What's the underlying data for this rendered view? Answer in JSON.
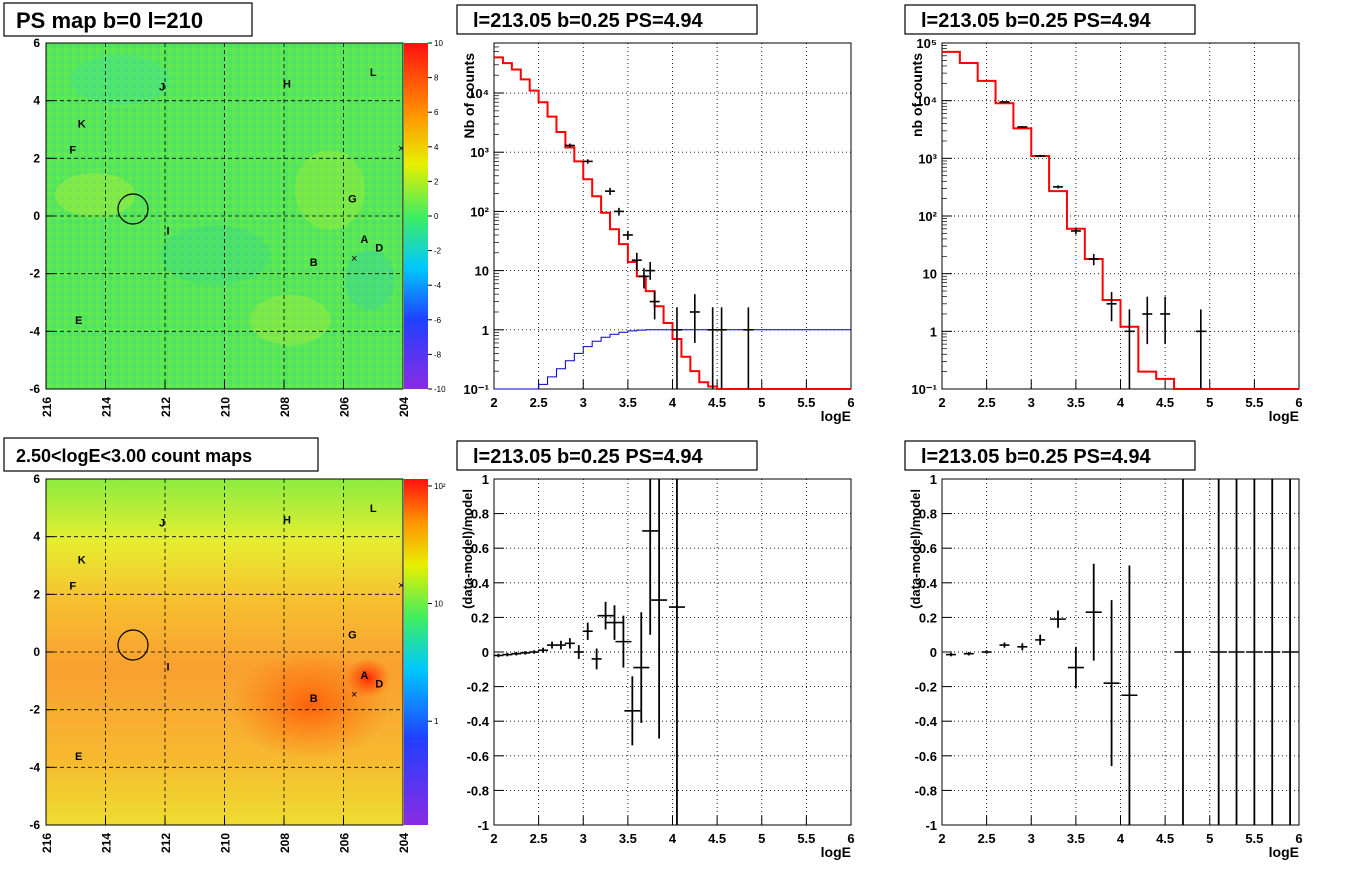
{
  "panels": {
    "map_top": {
      "title": "PS map b=0 l=210",
      "xticks": [
        "216",
        "214",
        "212",
        "210",
        "208",
        "206",
        "204"
      ],
      "yticks": [
        "6",
        "4",
        "2",
        "0",
        "-2",
        "-4",
        "-6"
      ],
      "cticks": [
        "10",
        "8",
        "6",
        "4",
        "2",
        "0",
        "-2",
        "-4",
        "-6",
        "-8",
        "-10"
      ],
      "labels": [
        "L",
        "J",
        "H",
        "K",
        "F",
        "G",
        "I",
        "A",
        "D",
        "B",
        "E"
      ]
    },
    "map_bottom": {
      "title": "2.50<logE<3.00 count maps",
      "xticks": [
        "216",
        "214",
        "212",
        "210",
        "208",
        "206",
        "204"
      ],
      "yticks": [
        "6",
        "4",
        "2",
        "0",
        "-2",
        "-4",
        "-6"
      ],
      "cticks": [
        "10²",
        "10",
        "1"
      ],
      "labels": [
        "L",
        "J",
        "H",
        "K",
        "F",
        "G",
        "I",
        "A",
        "D",
        "B",
        "E"
      ]
    },
    "spec1_title": "l=213.05 b=0.25 PS=4.94",
    "spec2_title": "l=213.05 b=0.25 PS=4.94",
    "res1_title": "l=213.05 b=0.25 PS=4.94",
    "res2_title": "l=213.05 b=0.25 PS=4.94"
  },
  "colors": {
    "model": "#ff0000",
    "ps_model": "#0000cc",
    "data": "#000000",
    "map_bg": "#44ee44"
  },
  "chart_data": [
    {
      "type": "heatmap",
      "title": "PS map b=0 l=210",
      "x_range": [
        216,
        204
      ],
      "y_range": [
        -6,
        6
      ],
      "z_range": [
        -10,
        10
      ],
      "z_ticks": [
        10,
        8,
        6,
        4,
        2,
        0,
        -2,
        -4,
        -6,
        -8,
        -10
      ],
      "sources": [
        {
          "label": "L",
          "l": 205.0,
          "b": 5.0
        },
        {
          "label": "J",
          "l": 212.1,
          "b": 4.5
        },
        {
          "label": "H",
          "l": 207.9,
          "b": 4.6
        },
        {
          "label": "K",
          "l": 214.8,
          "b": 3.2
        },
        {
          "label": "F",
          "l": 215.1,
          "b": 2.3
        },
        {
          "label": "G",
          "l": 205.7,
          "b": 0.6
        },
        {
          "label": "I",
          "l": 211.9,
          "b": -0.5
        },
        {
          "label": "A",
          "l": 205.3,
          "b": -0.8
        },
        {
          "label": "D",
          "l": 204.8,
          "b": -1.1
        },
        {
          "label": "B",
          "l": 207.0,
          "b": -1.6
        },
        {
          "label": "E",
          "l": 214.9,
          "b": -3.6
        }
      ]
    },
    {
      "type": "heatmap",
      "title": "2.50<logE<3.00 count maps",
      "x_range": [
        216,
        204
      ],
      "y_range": [
        -6,
        6
      ],
      "z_scale": "log",
      "z_ticks": [
        "10²",
        "10",
        "1"
      ]
    },
    {
      "type": "line",
      "title": "l=213.05 b=0.25 PS=4.94",
      "xlabel": "logE",
      "ylabel": "Nb of counts",
      "xlim": [
        2,
        6
      ],
      "ylim": [
        0.1,
        70000
      ],
      "yscale": "log",
      "xticks": [
        "2",
        "2.5",
        "3",
        "3.5",
        "4",
        "4.5",
        "5",
        "5.5",
        "6"
      ],
      "yticks": [
        "10⁻¹",
        "1",
        "10",
        "10²",
        "10³",
        "10⁴"
      ],
      "grid": true,
      "series": [
        {
          "role": "model",
          "x": [
            2,
            2.1,
            2.2,
            2.3,
            2.4,
            2.5,
            2.6,
            2.7,
            2.8,
            2.9,
            3.0,
            3.1,
            3.2,
            3.3,
            3.4,
            3.5,
            3.6,
            3.7,
            3.8,
            3.9,
            4.0,
            4.1,
            4.2,
            4.3,
            4.4,
            4.5,
            4.6,
            6.0
          ],
          "y": [
            40000,
            32000,
            25000,
            17000,
            11000,
            7000,
            4000,
            2200,
            1200,
            700,
            350,
            180,
            95,
            50,
            28,
            14,
            8,
            4.5,
            2.5,
            1.3,
            0.7,
            0.35,
            0.2,
            0.13,
            0.11,
            0.1,
            0.1,
            0.1
          ]
        },
        {
          "role": "ps_model",
          "x": [
            2,
            2.4,
            2.5,
            2.6,
            2.7,
            2.8,
            2.9,
            3.0,
            3.1,
            3.2,
            3.3,
            3.4,
            3.5,
            3.6,
            3.7,
            3.8,
            6.0
          ],
          "y": [
            0.1,
            0.1,
            0.12,
            0.16,
            0.22,
            0.3,
            0.4,
            0.52,
            0.64,
            0.75,
            0.84,
            0.91,
            0.96,
            0.99,
            1,
            1,
            1
          ]
        },
        {
          "role": "data",
          "points": [
            {
              "x": 2.85,
              "y": 1300,
              "lo": 1200,
              "hi": 1400
            },
            {
              "x": 3.05,
              "y": 700,
              "lo": 640,
              "hi": 760
            },
            {
              "x": 3.3,
              "y": 220,
              "lo": 190,
              "hi": 250
            },
            {
              "x": 3.4,
              "y": 100,
              "lo": 85,
              "hi": 115
            },
            {
              "x": 3.5,
              "y": 40,
              "lo": 33,
              "hi": 47
            },
            {
              "x": 3.6,
              "y": 15,
              "lo": 10,
              "hi": 20
            },
            {
              "x": 3.68,
              "y": 8,
              "lo": 5,
              "hi": 11
            },
            {
              "x": 3.75,
              "y": 10,
              "lo": 7,
              "hi": 14
            },
            {
              "x": 3.8,
              "y": 3,
              "lo": 1.5,
              "hi": 4.5
            },
            {
              "x": 4.05,
              "y": 1,
              "lo": 0.1,
              "hi": 2.4
            },
            {
              "x": 4.25,
              "y": 2,
              "lo": 0.6,
              "hi": 4
            },
            {
              "x": 4.45,
              "y": 1,
              "lo": 0.1,
              "hi": 2.4
            },
            {
              "x": 4.55,
              "y": 1,
              "lo": 0.1,
              "hi": 2.4
            },
            {
              "x": 4.85,
              "y": 1,
              "lo": 0.1,
              "hi": 2.4
            }
          ]
        }
      ]
    },
    {
      "type": "line",
      "title": "l=213.05 b=0.25 PS=4.94",
      "xlabel": "logE",
      "ylabel": "nb of counts",
      "xlim": [
        2,
        6
      ],
      "ylim": [
        0.1,
        100000
      ],
      "yscale": "log",
      "xticks": [
        "2",
        "2.5",
        "3",
        "3.5",
        "4",
        "4.5",
        "5",
        "5.5",
        "6"
      ],
      "yticks": [
        "10⁻¹",
        "1",
        "10",
        "10²",
        "10³",
        "10⁴",
        "10⁵"
      ],
      "grid": true,
      "series": [
        {
          "role": "model",
          "x": [
            2,
            2.2,
            2.4,
            2.6,
            2.8,
            3.0,
            3.2,
            3.4,
            3.6,
            3.8,
            4.0,
            4.2,
            4.4,
            4.6,
            6.0
          ],
          "y": [
            70000,
            45000,
            22000,
            9000,
            3300,
            1100,
            270,
            60,
            18,
            3.5,
            1.2,
            0.2,
            0.15,
            0.1,
            0.1
          ]
        },
        {
          "role": "data",
          "points": [
            {
              "x": 2.7,
              "y": 9500,
              "lo": 9300,
              "hi": 9700
            },
            {
              "x": 2.9,
              "y": 3500,
              "lo": 3400,
              "hi": 3600
            },
            {
              "x": 3.1,
              "y": 1100,
              "lo": 1050,
              "hi": 1150
            },
            {
              "x": 3.3,
              "y": 320,
              "lo": 300,
              "hi": 340
            },
            {
              "x": 3.5,
              "y": 55,
              "lo": 48,
              "hi": 62
            },
            {
              "x": 3.7,
              "y": 18,
              "lo": 14,
              "hi": 22
            },
            {
              "x": 3.9,
              "y": 3,
              "lo": 1.5,
              "hi": 4.8
            },
            {
              "x": 4.1,
              "y": 1,
              "lo": 0.1,
              "hi": 2.4
            },
            {
              "x": 4.3,
              "y": 2,
              "lo": 0.6,
              "hi": 4
            },
            {
              "x": 4.5,
              "y": 2,
              "lo": 0.6,
              "hi": 4
            },
            {
              "x": 4.9,
              "y": 1,
              "lo": 0.1,
              "hi": 2.4
            }
          ]
        }
      ]
    },
    {
      "type": "scatter",
      "title": "l=213.05 b=0.25 PS=4.94",
      "xlabel": "logE",
      "ylabel": "(data-model)/model",
      "xlim": [
        2,
        6
      ],
      "ylim": [
        -1,
        1
      ],
      "xticks": [
        "2",
        "2.5",
        "3",
        "3.5",
        "4",
        "4.5",
        "5",
        "5.5",
        "6"
      ],
      "yticks": [
        "-1",
        "-0.8",
        "-0.6",
        "-0.4",
        "-0.2",
        "0",
        "0.2",
        "0.4",
        "0.6",
        "0.8",
        "1"
      ],
      "grid": true,
      "points": [
        {
          "x": 2.05,
          "y": -0.02,
          "e": 0.01
        },
        {
          "x": 2.15,
          "y": -0.015,
          "e": 0.01
        },
        {
          "x": 2.25,
          "y": -0.01,
          "e": 0.01
        },
        {
          "x": 2.35,
          "y": -0.005,
          "e": 0.01
        },
        {
          "x": 2.45,
          "y": 0.0,
          "e": 0.01
        },
        {
          "x": 2.55,
          "y": 0.01,
          "e": 0.015
        },
        {
          "x": 2.65,
          "y": 0.04,
          "e": 0.02
        },
        {
          "x": 2.75,
          "y": 0.04,
          "e": 0.025
        },
        {
          "x": 2.85,
          "y": 0.05,
          "e": 0.03
        },
        {
          "x": 2.95,
          "y": 0.0,
          "e": 0.04
        },
        {
          "x": 3.05,
          "y": 0.12,
          "e": 0.05
        },
        {
          "x": 3.15,
          "y": -0.04,
          "e": 0.06
        },
        {
          "x": 3.25,
          "y": 0.21,
          "e": 0.08
        },
        {
          "x": 3.35,
          "y": 0.17,
          "e": 0.1
        },
        {
          "x": 3.45,
          "y": 0.06,
          "e": 0.15
        },
        {
          "x": 3.55,
          "y": -0.34,
          "e": 0.2
        },
        {
          "x": 3.65,
          "y": -0.09,
          "e": 0.32
        },
        {
          "x": 3.75,
          "y": 0.7,
          "e": 0.6
        },
        {
          "x": 3.85,
          "y": 0.3,
          "e": 0.8
        },
        {
          "x": 4.05,
          "y": 0.26,
          "e": 1.5
        }
      ]
    },
    {
      "type": "scatter",
      "title": "l=213.05 b=0.25 PS=4.94",
      "xlabel": "logE",
      "ylabel": "(data-model)/model",
      "xlim": [
        2,
        6
      ],
      "ylim": [
        -1,
        1
      ],
      "xticks": [
        "2",
        "2.5",
        "3",
        "3.5",
        "4",
        "4.5",
        "5",
        "5.5",
        "6"
      ],
      "yticks": [
        "-1",
        "-0.8",
        "-0.6",
        "-0.4",
        "-0.2",
        "0",
        "0.2",
        "0.4",
        "0.6",
        "0.8",
        "1"
      ],
      "grid": true,
      "points": [
        {
          "x": 2.1,
          "y": -0.015,
          "e": 0.01
        },
        {
          "x": 2.3,
          "y": -0.01,
          "e": 0.01
        },
        {
          "x": 2.5,
          "y": 0.0,
          "e": 0.01
        },
        {
          "x": 2.7,
          "y": 0.04,
          "e": 0.015
        },
        {
          "x": 2.9,
          "y": 0.03,
          "e": 0.02
        },
        {
          "x": 3.1,
          "y": 0.07,
          "e": 0.03
        },
        {
          "x": 3.3,
          "y": 0.19,
          "e": 0.05
        },
        {
          "x": 3.5,
          "y": -0.09,
          "e": 0.12
        },
        {
          "x": 3.7,
          "y": 0.23,
          "e": 0.28
        },
        {
          "x": 3.9,
          "y": -0.18,
          "e": 0.48
        },
        {
          "x": 4.1,
          "y": -0.25,
          "e": 0.75
        },
        {
          "x": 4.7,
          "y": 0.0,
          "e": 2
        },
        {
          "x": 5.1,
          "y": 0.0,
          "e": 2
        },
        {
          "x": 5.3,
          "y": 0.0,
          "e": 2
        },
        {
          "x": 5.5,
          "y": 0.0,
          "e": 2
        },
        {
          "x": 5.7,
          "y": 0.0,
          "e": 2
        },
        {
          "x": 5.9,
          "y": 0.0,
          "e": 2
        }
      ]
    }
  ]
}
